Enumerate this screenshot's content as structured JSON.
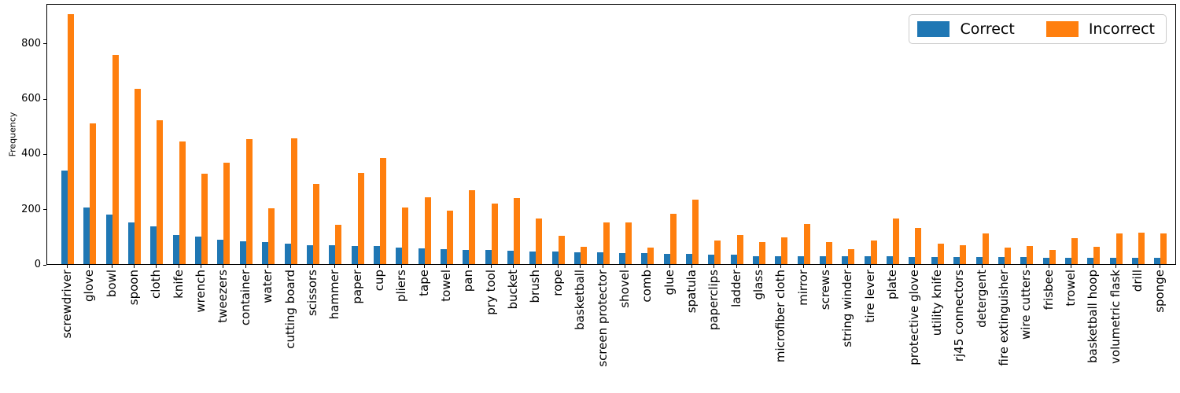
{
  "chart_data": {
    "type": "bar",
    "title": "",
    "xlabel": "",
    "ylabel": "Frequency",
    "ylim": [
      0,
      945
    ],
    "yticks": [
      0,
      200,
      400,
      600,
      800
    ],
    "grid": false,
    "legend_position": "upper right, horizontal",
    "categories": [
      "screwdriver",
      "glove",
      "bowl",
      "spoon",
      "cloth",
      "knife",
      "wrench",
      "tweezers",
      "container",
      "water",
      "cutting board",
      "scissors",
      "hammer",
      "paper",
      "cup",
      "pliers",
      "tape",
      "towel",
      "pan",
      "pry tool",
      "bucket",
      "brush",
      "rope",
      "basketball",
      "screen protector",
      "shovel",
      "comb",
      "glue",
      "spatula",
      "paperclips",
      "ladder",
      "glass",
      "microfiber cloth",
      "mirror",
      "screws",
      "string winder",
      "tire lever",
      "plate",
      "protective glove",
      "utility knife",
      "rj45 connectors",
      "detergent",
      "fire extinguisher",
      "wire cutters",
      "frisbee",
      "trowel",
      "basketball hoop",
      "volumetric flask",
      "drill",
      "sponge"
    ],
    "series": [
      {
        "name": "Correct",
        "color": "#1f77b4",
        "values": [
          338,
          206,
          179,
          150,
          137,
          106,
          100,
          89,
          83,
          80,
          75,
          69,
          68,
          66,
          65,
          59,
          56,
          53,
          50,
          50,
          49,
          47,
          46,
          43,
          43,
          41,
          41,
          38,
          36,
          35,
          35,
          30,
          30,
          30,
          29,
          29,
          28,
          28,
          27,
          27,
          27,
          27,
          26,
          26,
          24,
          24,
          24,
          23,
          23,
          23
        ]
      },
      {
        "name": "Incorrect",
        "color": "#ff7f0e",
        "values": [
          905,
          511,
          757,
          634,
          520,
          444,
          328,
          366,
          452,
          203,
          455,
          291,
          142,
          331,
          384,
          204,
          243,
          194,
          267,
          218,
          240,
          166,
          104,
          64,
          152,
          152,
          61,
          182,
          234,
          85,
          105,
          79,
          96,
          146,
          79,
          53,
          85,
          165,
          132,
          73,
          68,
          112,
          60,
          65,
          51,
          95,
          63,
          110,
          115,
          110
        ]
      }
    ]
  },
  "colors": {
    "background": "#ffffff",
    "spine": "#000000",
    "legend_border": "#cccccc"
  }
}
